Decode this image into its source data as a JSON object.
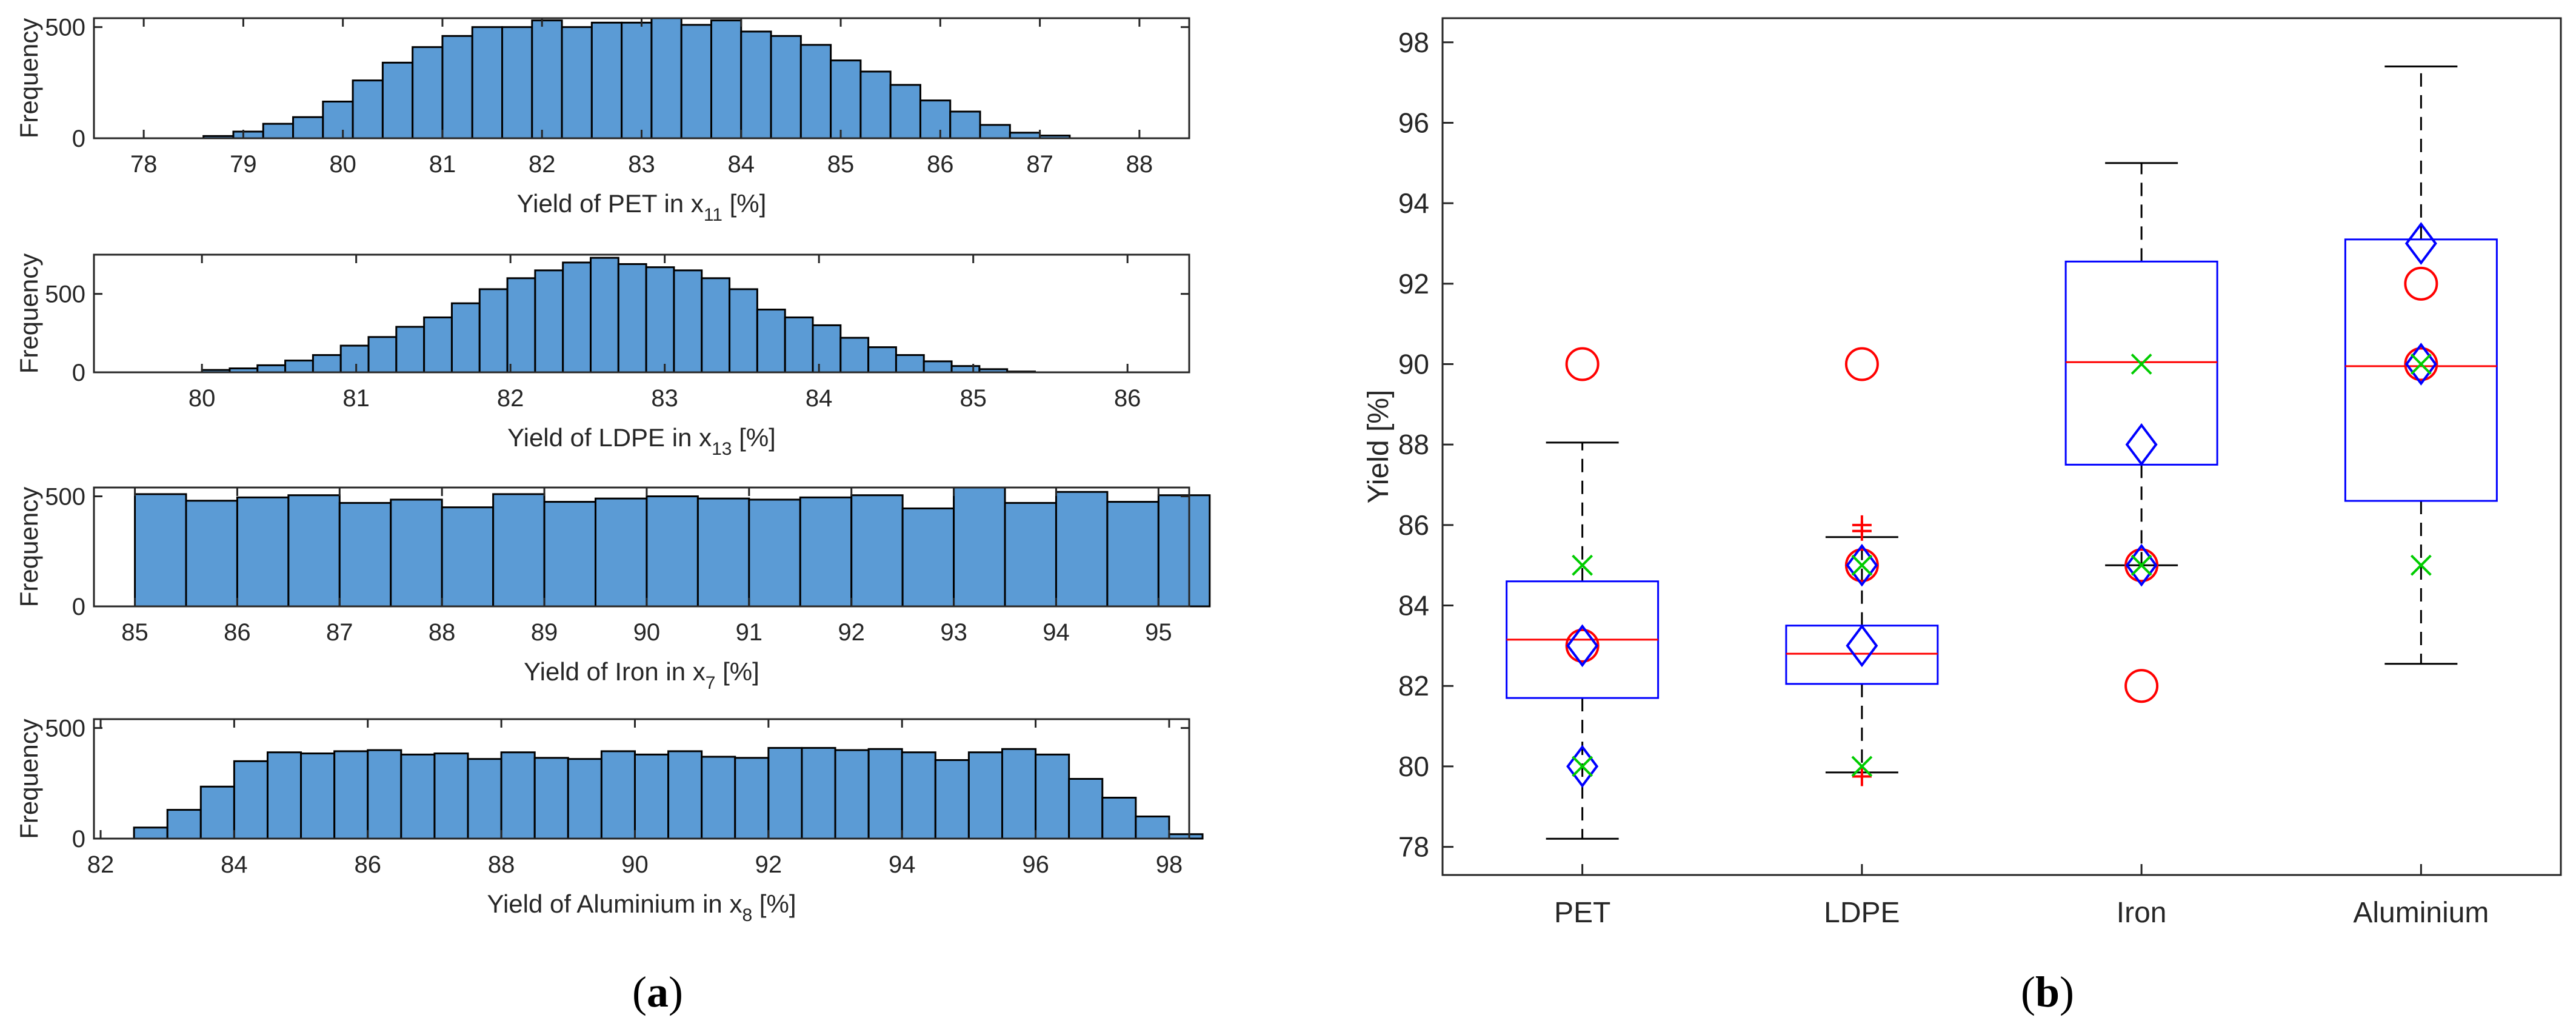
{
  "figure": {
    "panel_a_label": "(a)",
    "panel_a_letter": "a",
    "panel_b_label": "(b)",
    "panel_b_letter": "b"
  },
  "chart_data": [
    {
      "type": "bar",
      "kind": "histogram",
      "id": "pet",
      "ylabel": "Frequency",
      "xlabel_main": "Yield of PET in x",
      "xlabel_sub": "11",
      "xlabel_tail": " [%]",
      "xlim": [
        77.5,
        88.5
      ],
      "ylim": [
        0,
        540
      ],
      "xticks": [
        78,
        79,
        80,
        81,
        82,
        83,
        84,
        85,
        86,
        87,
        88
      ],
      "yticks": [
        0,
        500
      ],
      "bin_start": 78.6,
      "bin_width": 0.3,
      "counts": [
        10,
        30,
        65,
        95,
        165,
        260,
        340,
        410,
        460,
        500,
        500,
        530,
        500,
        520,
        520,
        540,
        510,
        530,
        480,
        460,
        420,
        350,
        300,
        240,
        170,
        120,
        60,
        25,
        12
      ],
      "bar_color": "#5b9bd5",
      "edge_color": "#000000"
    },
    {
      "type": "bar",
      "kind": "histogram",
      "id": "ldpe",
      "ylabel": "Frequency",
      "xlabel_main": "Yield of LDPE in x",
      "xlabel_sub": "13",
      "xlabel_tail": " [%]",
      "xlim": [
        79.3,
        86.4
      ],
      "ylim": [
        0,
        750
      ],
      "xticks": [
        80,
        81,
        82,
        83,
        84,
        85,
        86
      ],
      "yticks": [
        0,
        500
      ],
      "bin_start": 80.0,
      "bin_width": 0.18,
      "counts": [
        15,
        25,
        45,
        75,
        110,
        170,
        225,
        290,
        350,
        440,
        530,
        600,
        650,
        700,
        730,
        690,
        670,
        650,
        600,
        530,
        400,
        350,
        300,
        220,
        160,
        110,
        70,
        40,
        20,
        5
      ],
      "bar_color": "#5b9bd5",
      "edge_color": "#000000"
    },
    {
      "type": "bar",
      "kind": "histogram",
      "id": "iron",
      "ylabel": "Frequency",
      "xlabel_main": "Yield of Iron in x",
      "xlabel_sub": "7",
      "xlabel_tail": " [%]",
      "xlim": [
        84.6,
        95.3
      ],
      "ylim": [
        0,
        540
      ],
      "xticks": [
        85,
        86,
        87,
        88,
        89,
        90,
        91,
        92,
        93,
        94,
        95
      ],
      "yticks": [
        0,
        500
      ],
      "bin_start": 85.0,
      "bin_width": 0.5,
      "counts": [
        510,
        480,
        495,
        505,
        470,
        485,
        450,
        510,
        475,
        490,
        500,
        490,
        485,
        495,
        505,
        445,
        540,
        470,
        520,
        475,
        505
      ],
      "bar_color": "#5b9bd5",
      "edge_color": "#000000"
    },
    {
      "type": "bar",
      "kind": "histogram",
      "id": "aluminium",
      "ylabel": "Frequency",
      "xlabel_main": "Yield of Aluminium in x",
      "xlabel_sub": "8",
      "xlabel_tail": " [%]",
      "xlim": [
        81.9,
        98.3
      ],
      "ylim": [
        0,
        540
      ],
      "xticks": [
        82,
        84,
        86,
        88,
        90,
        92,
        94,
        96,
        98
      ],
      "yticks": [
        0,
        500
      ],
      "bin_start": 82.5,
      "bin_width": 0.5,
      "counts": [
        50,
        130,
        235,
        350,
        390,
        385,
        395,
        400,
        380,
        385,
        360,
        390,
        365,
        360,
        395,
        380,
        395,
        370,
        365,
        410,
        410,
        400,
        405,
        390,
        355,
        390,
        405,
        380,
        270,
        185,
        100,
        20
      ],
      "bar_color": "#5b9bd5",
      "edge_color": "#000000"
    },
    {
      "type": "box",
      "id": "boxplot",
      "ylabel": "Yield [%]",
      "ylim": [
        77.3,
        98.6
      ],
      "yticks": [
        78,
        80,
        82,
        84,
        86,
        88,
        90,
        92,
        94,
        96,
        98
      ],
      "categories": [
        "PET",
        "LDPE",
        "Iron",
        "Aluminium"
      ],
      "boxes": [
        {
          "name": "PET",
          "whisker_low": 78.2,
          "q1": 81.7,
          "median": 83.15,
          "q3": 84.6,
          "whisker_high": 88.05,
          "outliers": []
        },
        {
          "name": "LDPE",
          "whisker_low": 79.85,
          "q1": 82.05,
          "median": 82.8,
          "q3": 83.5,
          "whisker_high": 85.7,
          "outliers": [
            79.75,
            85.85,
            86.0
          ]
        },
        {
          "name": "Iron",
          "whisker_low": 85.0,
          "q1": 87.5,
          "median": 90.05,
          "q3": 92.55,
          "whisker_high": 95.0,
          "outliers": []
        },
        {
          "name": "Aluminium",
          "whisker_low": 82.55,
          "q1": 86.6,
          "median": 89.95,
          "q3": 93.1,
          "whisker_high": 97.4,
          "outliers": []
        }
      ],
      "circle_markers": [
        {
          "category": "PET",
          "values": [
            90,
            83
          ]
        },
        {
          "category": "LDPE",
          "values": [
            90,
            85
          ]
        },
        {
          "category": "Iron",
          "values": [
            85,
            82
          ]
        },
        {
          "category": "Aluminium",
          "values": [
            92,
            90
          ]
        }
      ],
      "diamond_markers": [
        {
          "category": "PET",
          "values": [
            83,
            80
          ]
        },
        {
          "category": "LDPE",
          "values": [
            85,
            83
          ]
        },
        {
          "category": "Iron",
          "values": [
            88,
            85
          ]
        },
        {
          "category": "Aluminium",
          "values": [
            93,
            90
          ]
        }
      ],
      "x_markers": [
        {
          "category": "PET",
          "values": [
            85,
            80
          ]
        },
        {
          "category": "LDPE",
          "values": [
            85,
            80
          ]
        },
        {
          "category": "Iron",
          "values": [
            90,
            85
          ]
        },
        {
          "category": "Aluminium",
          "values": [
            90,
            85
          ]
        }
      ],
      "colors": {
        "box": "#0000ff",
        "median": "#ff0000",
        "whisker": "#000000",
        "outlier": "#ff0000",
        "circle": "#ff0000",
        "diamond": "#0000ff",
        "x_marker": "#00cc00"
      }
    }
  ]
}
